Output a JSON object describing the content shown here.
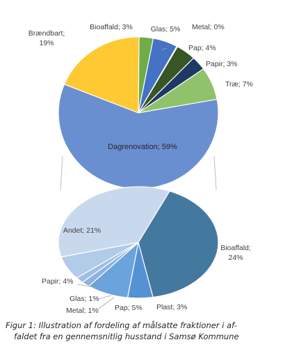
{
  "chart_data": {
    "type": "pie-of-pie",
    "main_pie": {
      "slices": [
        {
          "label": "Bioaffald; 3%",
          "value": 3,
          "color": "#70ad47"
        },
        {
          "label": "Glas; 5%",
          "value": 5,
          "color": "#4472c4"
        },
        {
          "label": "Metal; 0%",
          "value": 0,
          "color": "#a5a5a5"
        },
        {
          "label": "Pap; 4%",
          "value": 4,
          "color": "#375623"
        },
        {
          "label": "Papir; 3%",
          "value": 3,
          "color": "#203864"
        },
        {
          "label": "Træ; 7%",
          "value": 7,
          "color": "#8fc26a"
        },
        {
          "label": "Dagrenovation; 59%",
          "value": 59,
          "color": "#6a8fd1"
        },
        {
          "label": "Brændbart; 19%",
          "value": 19,
          "color": "#ffc934"
        }
      ]
    },
    "secondary_pie": {
      "of": "Dagrenovation; 59%",
      "slices": [
        {
          "label": "Bioaffald; 24%",
          "value": 24,
          "color": "#44799f"
        },
        {
          "label": "Plast; 3%",
          "value": 3,
          "color": "#5592d3"
        },
        {
          "label": "Pap; 5%",
          "value": 5,
          "color": "#6ba3dd"
        },
        {
          "label": "Metal; 1%",
          "value": 1,
          "color": "#8db3de"
        },
        {
          "label": "Glas; 1%",
          "value": 1,
          "color": "#9dbfe4"
        },
        {
          "label": "Papir; 4%",
          "value": 4,
          "color": "#b1cbe8"
        },
        {
          "label": "Andet; 21%",
          "value": 21,
          "color": "#c9d9ed"
        }
      ]
    }
  },
  "caption": {
    "line1": "Figur 1: Illustration af fordeling af målsatte fraktioner i af-",
    "line2": "faldet fra en gennemsnitlig husstand i Samsø Kommune"
  }
}
